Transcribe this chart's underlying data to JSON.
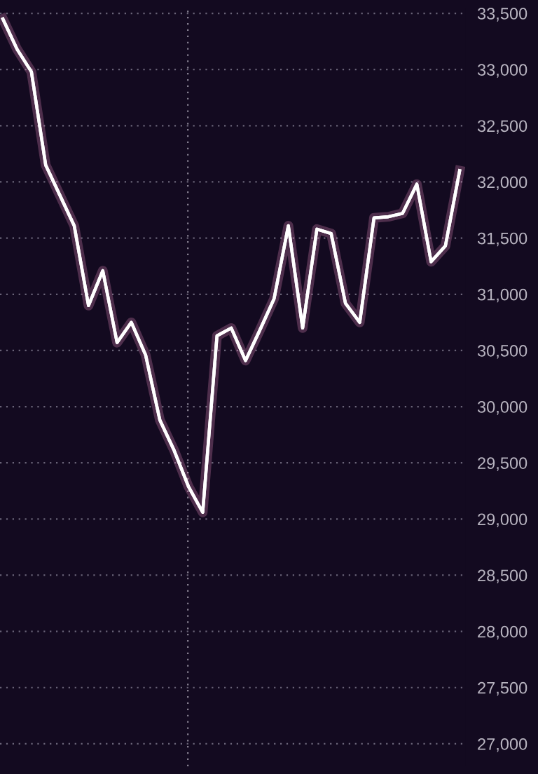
{
  "chart_data": {
    "type": "line",
    "categories": [
      null,
      null,
      null,
      null,
      null,
      null,
      null,
      null,
      null,
      null,
      null,
      null,
      null,
      null,
      null,
      null,
      null,
      null,
      null,
      null,
      null,
      null,
      null,
      null,
      null,
      null,
      null,
      null,
      null,
      null,
      null,
      null,
      null
    ],
    "series": [
      {
        "color": "#ffffff",
        "values": [
          33450,
          33180,
          32980,
          32150,
          31880,
          31610,
          30900,
          31210,
          30570,
          30750,
          30460,
          29880,
          29610,
          29290,
          29060,
          30630,
          30700,
          30410,
          30680,
          30960,
          31610,
          30700,
          31580,
          31540,
          30920,
          30750,
          31680,
          31690,
          31720,
          31980,
          31290,
          31430,
          32100
        ]
      }
    ],
    "ylim": [
      26800,
      33550
    ],
    "yticks": [
      {
        "value": 27000,
        "label": "27,000"
      },
      {
        "value": 27500,
        "label": "27,500"
      },
      {
        "value": 28000,
        "label": "28,000"
      },
      {
        "value": 28500,
        "label": "28,500"
      },
      {
        "value": 29000,
        "label": "29,000"
      },
      {
        "value": 29500,
        "label": "29,500"
      },
      {
        "value": 30000,
        "label": "30,000"
      },
      {
        "value": 30500,
        "label": "30,500"
      },
      {
        "value": 31000,
        "label": "31,000"
      },
      {
        "value": 31500,
        "label": "31,500"
      },
      {
        "value": 32000,
        "label": "32,000"
      },
      {
        "value": 32500,
        "label": "32,500"
      },
      {
        "value": 33000,
        "label": "33,000"
      },
      {
        "value": 33500,
        "label": "33,500"
      }
    ],
    "grid": "y",
    "marker": "none",
    "line_style": "solid",
    "tick_labels": "y",
    "legend": false
  }
}
